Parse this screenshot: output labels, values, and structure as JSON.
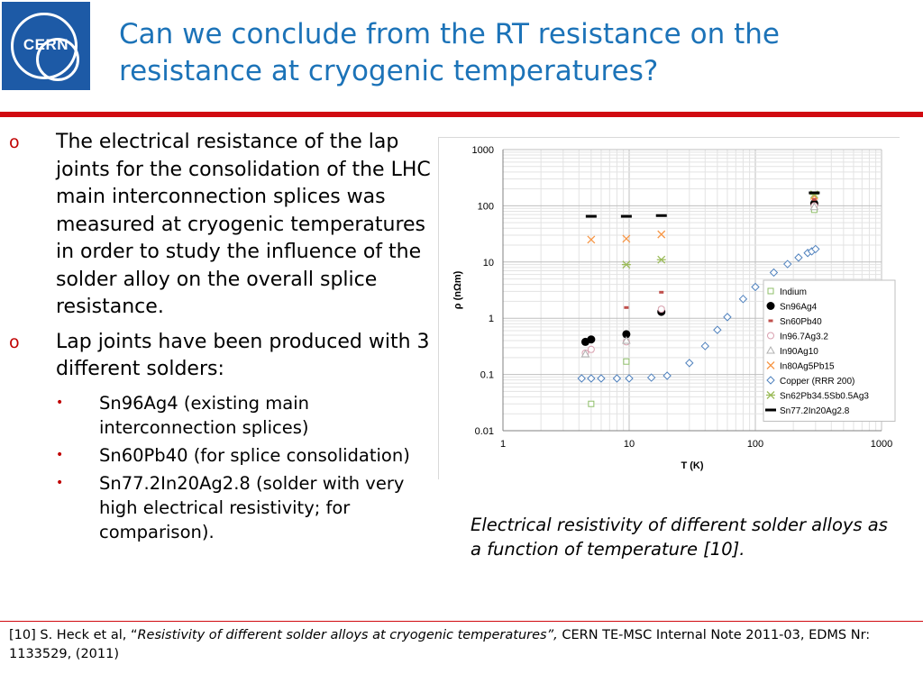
{
  "logo": {
    "text": "CERN"
  },
  "title": "Can we conclude from the RT resistance on the resistance at cryogenic temperatures?",
  "bullets": [
    {
      "text": "The electrical resistance of the lap joints for the consolidation of the LHC main interconnection splices was measured at cryogenic temperatures in order to study the influence of the solder alloy on the overall splice resistance.",
      "subitems": []
    },
    {
      "text": "Lap joints have been produced with 3 different solders:",
      "subitems": [
        "Sn96Ag4 (existing main interconnection splices)",
        "Sn60Pb40 (for splice consolidation)",
        "Sn77.2In20Ag2.8 (solder with very high electrical resistivity; for comparison)."
      ]
    }
  ],
  "bullet_marks": {
    "level1": "o",
    "level2": "•"
  },
  "caption": "Electrical resistivity of different solder alloys as a function of temperature [10].",
  "footer": {
    "prefix": "[10] S. Heck et al, “",
    "italic": "Resistivity of different solder alloys at cryogenic temperatures”,",
    "suffix": " CERN TE-MSC Internal Note 2011-03, EDMS Nr: 1133529, (2011)"
  },
  "colors": {
    "title": "#1c73b8",
    "accent_red": "#d10a10",
    "logo_blue": "#1d5aa6"
  },
  "chart_data": {
    "type": "scatter",
    "xlabel": "T (K)",
    "ylabel": "ρ (nΩm)",
    "xscale": "log",
    "yscale": "log",
    "xlim": [
      1,
      1000
    ],
    "ylim": [
      0.01,
      1000
    ],
    "xticks": [
      "1",
      "10",
      "100",
      "1000"
    ],
    "yticks": [
      "1000",
      "100",
      "10",
      "1",
      "0.1",
      "0.01"
    ],
    "grid": true,
    "legend_position": "right",
    "series": [
      {
        "name": "Indium",
        "marker": "square-open",
        "color": "#8fbf6a",
        "points": [
          [
            5,
            0.03
          ],
          [
            9.5,
            0.17
          ],
          [
            18,
            1.4
          ],
          [
            293,
            85
          ]
        ]
      },
      {
        "name": "Sn96Ag4",
        "marker": "circle-filled",
        "color": "#000000",
        "points": [
          [
            4.5,
            0.38
          ],
          [
            5,
            0.42
          ],
          [
            9.5,
            0.52
          ],
          [
            18,
            1.3
          ],
          [
            293,
            110
          ]
        ]
      },
      {
        "name": "Sn60Pb40",
        "marker": "dash",
        "color": "#c0504d",
        "points": [
          [
            4.5,
            0.22
          ],
          [
            5,
            0.26
          ],
          [
            9.5,
            1.55
          ],
          [
            18,
            2.9
          ],
          [
            293,
            130
          ]
        ]
      },
      {
        "name": "In96.7Ag3.2",
        "marker": "circle-open",
        "color": "#d9a0b0",
        "points": [
          [
            4.5,
            0.24
          ],
          [
            5,
            0.28
          ],
          [
            9.5,
            0.38
          ],
          [
            18,
            1.45
          ],
          [
            293,
            100
          ]
        ]
      },
      {
        "name": "In90Ag10",
        "marker": "triangle-open",
        "color": "#b0b0b0",
        "points": [
          [
            4.5,
            0.23
          ],
          [
            9.5,
            0.4
          ],
          [
            293,
            95
          ]
        ]
      },
      {
        "name": "In80Ag5Pb15",
        "marker": "x",
        "color": "#f79646",
        "points": [
          [
            5,
            25
          ],
          [
            9.5,
            26
          ],
          [
            18,
            31
          ],
          [
            293,
            150
          ]
        ]
      },
      {
        "name": "Copper (RRR 200)",
        "marker": "diamond-open",
        "color": "#4f81bd",
        "points": [
          [
            4.2,
            0.085
          ],
          [
            5,
            0.085
          ],
          [
            6,
            0.085
          ],
          [
            8,
            0.085
          ],
          [
            10,
            0.085
          ],
          [
            15,
            0.088
          ],
          [
            20,
            0.095
          ],
          [
            30,
            0.16
          ],
          [
            40,
            0.32
          ],
          [
            50,
            0.62
          ],
          [
            60,
            1.05
          ],
          [
            80,
            2.2
          ],
          [
            100,
            3.6
          ],
          [
            140,
            6.5
          ],
          [
            180,
            9.2
          ],
          [
            220,
            12
          ],
          [
            260,
            14.5
          ],
          [
            280,
            15.5
          ],
          [
            300,
            17
          ]
        ]
      },
      {
        "name": "Sn62Pb34.5Sb0.5Ag3",
        "marker": "asterisk",
        "color": "#9bbb59",
        "points": [
          [
            9.5,
            9
          ],
          [
            18,
            11
          ],
          [
            293,
            160
          ]
        ]
      },
      {
        "name": "Sn77.2In20Ag2.8",
        "marker": "bar",
        "color": "#000000",
        "points": [
          [
            5,
            65
          ],
          [
            9.5,
            65
          ],
          [
            18,
            67
          ],
          [
            293,
            170
          ]
        ]
      }
    ]
  }
}
